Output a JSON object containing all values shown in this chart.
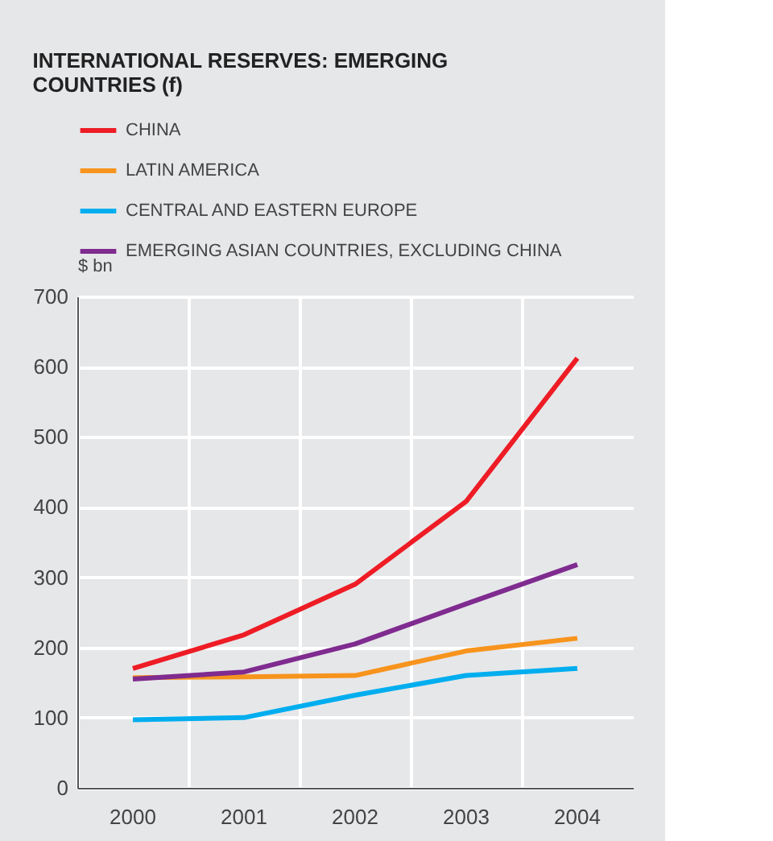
{
  "chart_data": {
    "type": "line",
    "title": [
      "INTERNATIONAL RESERVES: EMERGING",
      "COUNTRIES (f)"
    ],
    "ylabel": "$ bn",
    "categories": [
      "2000",
      "2001",
      "2002",
      "2003",
      "2004"
    ],
    "series": [
      {
        "name": "CHINA",
        "color": "#ee1c25",
        "values": [
          170,
          218,
          290,
          408,
          612
        ]
      },
      {
        "name": "LATIN AMERICA",
        "color": "#f7941d",
        "values": [
          157,
          158,
          160,
          195,
          213
        ]
      },
      {
        "name": "CENTRAL AND EASTERN EUROPE",
        "color": "#00aeef",
        "values": [
          97,
          100,
          132,
          160,
          170
        ]
      },
      {
        "name": "EMERGING ASIAN COUNTRIES, EXCLUDING CHINA",
        "color": "#7f2b8f",
        "values": [
          155,
          165,
          205,
          262,
          318
        ]
      }
    ],
    "ylim": [
      0,
      700
    ],
    "yticks": [
      0,
      100,
      200,
      300,
      400,
      500,
      600,
      700
    ],
    "grid": true,
    "legend": "top left",
    "marker": "none",
    "line_style": "solid"
  }
}
